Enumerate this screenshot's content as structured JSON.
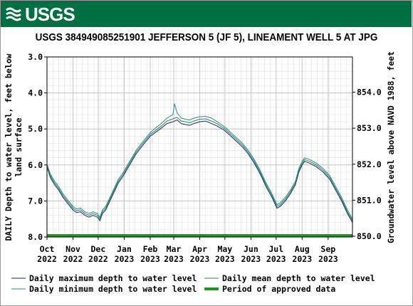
{
  "logo_text": "USGS",
  "title": "USGS 384949085251901 JEFFERSON 5 (JF 5), LINEAMENT WELL 5 AT JPG",
  "chart_data": {
    "type": "line",
    "ylabel": "DAILY Depth to water level, feet below land surface",
    "ylabel_lines": [
      "DAILY Depth to water level, feet below",
      "land surface"
    ],
    "y2label": "Groundwater level above NAVD 1988, feet",
    "ylim": [
      8.0,
      3.0
    ],
    "y_inverted": true,
    "yticks": [
      {
        "value": 3.0,
        "label": "3.0"
      },
      {
        "value": 4.0,
        "label": "4.0"
      },
      {
        "value": 5.0,
        "label": "5.0"
      },
      {
        "value": 6.0,
        "label": "6.0"
      },
      {
        "value": 7.0,
        "label": "7.0"
      },
      {
        "value": 8.0,
        "label": "8.0"
      }
    ],
    "y2ticks": [
      {
        "value": 854.0,
        "label": "854.0"
      },
      {
        "value": 853.0,
        "label": "853.0"
      },
      {
        "value": 852.0,
        "label": "852.0"
      },
      {
        "value": 851.0,
        "label": "851.0"
      },
      {
        "value": 850.0,
        "label": "850.0"
      }
    ],
    "y2_offset": 857.98,
    "xlim": [
      "2022-10-01",
      "2023-09-30"
    ],
    "xticks": [
      {
        "date": "2022-10-01",
        "month": "Oct",
        "year": "2022"
      },
      {
        "date": "2022-11-01",
        "month": "Nov",
        "year": "2022"
      },
      {
        "date": "2022-12-01",
        "month": "Dec",
        "year": "2022"
      },
      {
        "date": "2023-01-01",
        "month": "Jan",
        "year": "2023"
      },
      {
        "date": "2023-02-01",
        "month": "Feb",
        "year": "2023"
      },
      {
        "date": "2023-03-01",
        "month": "Mar",
        "year": "2023"
      },
      {
        "date": "2023-04-01",
        "month": "Apr",
        "year": "2023"
      },
      {
        "date": "2023-05-01",
        "month": "May",
        "year": "2023"
      },
      {
        "date": "2023-06-01",
        "month": "Jun",
        "year": "2023"
      },
      {
        "date": "2023-07-01",
        "month": "Jul",
        "year": "2023"
      },
      {
        "date": "2023-08-01",
        "month": "Aug",
        "year": "2023"
      },
      {
        "date": "2023-09-01",
        "month": "Sep",
        "year": "2023"
      }
    ],
    "grid": true,
    "legend_position": "bottom",
    "series": [
      {
        "name": "Daily maximum depth to water level",
        "color": "#1a1aa6",
        "points": [
          [
            "2022-10-01",
            6.05
          ],
          [
            "2022-10-05",
            6.35
          ],
          [
            "2022-10-10",
            6.55
          ],
          [
            "2022-10-15",
            6.7
          ],
          [
            "2022-10-20",
            6.9
          ],
          [
            "2022-10-25",
            7.05
          ],
          [
            "2022-11-01",
            7.25
          ],
          [
            "2022-11-05",
            7.32
          ],
          [
            "2022-11-10",
            7.3
          ],
          [
            "2022-11-15",
            7.4
          ],
          [
            "2022-11-20",
            7.45
          ],
          [
            "2022-11-25",
            7.4
          ],
          [
            "2022-11-30",
            7.45
          ],
          [
            "2022-12-03",
            7.55
          ],
          [
            "2022-12-06",
            7.35
          ],
          [
            "2022-12-10",
            7.25
          ],
          [
            "2022-12-15",
            7.0
          ],
          [
            "2022-12-20",
            6.75
          ],
          [
            "2022-12-25",
            6.5
          ],
          [
            "2022-12-31",
            6.3
          ],
          [
            "2023-01-05",
            6.1
          ],
          [
            "2023-01-10",
            5.9
          ],
          [
            "2023-01-15",
            5.7
          ],
          [
            "2023-01-20",
            5.55
          ],
          [
            "2023-01-25",
            5.4
          ],
          [
            "2023-02-01",
            5.2
          ],
          [
            "2023-02-07",
            5.1
          ],
          [
            "2023-02-14",
            4.98
          ],
          [
            "2023-02-21",
            4.85
          ],
          [
            "2023-02-28",
            4.8
          ],
          [
            "2023-03-05",
            4.75
          ],
          [
            "2023-03-10",
            4.85
          ],
          [
            "2023-03-15",
            4.88
          ],
          [
            "2023-03-20",
            4.9
          ],
          [
            "2023-03-25",
            4.85
          ],
          [
            "2023-04-01",
            4.8
          ],
          [
            "2023-04-08",
            4.78
          ],
          [
            "2023-04-15",
            4.85
          ],
          [
            "2023-04-22",
            4.92
          ],
          [
            "2023-05-01",
            5.05
          ],
          [
            "2023-05-08",
            5.2
          ],
          [
            "2023-05-15",
            5.35
          ],
          [
            "2023-05-22",
            5.5
          ],
          [
            "2023-05-29",
            5.7
          ],
          [
            "2023-06-05",
            5.95
          ],
          [
            "2023-06-12",
            6.25
          ],
          [
            "2023-06-19",
            6.6
          ],
          [
            "2023-06-26",
            6.9
          ],
          [
            "2023-07-02",
            7.2
          ],
          [
            "2023-07-06",
            7.15
          ],
          [
            "2023-07-12",
            7.0
          ],
          [
            "2023-07-18",
            6.8
          ],
          [
            "2023-07-24",
            6.55
          ],
          [
            "2023-07-28",
            6.2
          ],
          [
            "2023-08-01",
            6.0
          ],
          [
            "2023-08-04",
            5.9
          ],
          [
            "2023-08-10",
            5.95
          ],
          [
            "2023-08-18",
            6.05
          ],
          [
            "2023-08-26",
            6.2
          ],
          [
            "2023-09-03",
            6.4
          ],
          [
            "2023-09-10",
            6.7
          ],
          [
            "2023-09-17",
            7.0
          ],
          [
            "2023-09-24",
            7.35
          ],
          [
            "2023-09-30",
            7.6
          ]
        ]
      },
      {
        "name": "Daily mean depth to water level",
        "color": "#2e8b2e",
        "points": [
          [
            "2022-10-01",
            6.02
          ],
          [
            "2022-10-05",
            6.3
          ],
          [
            "2022-10-10",
            6.5
          ],
          [
            "2022-10-15",
            6.65
          ],
          [
            "2022-10-20",
            6.85
          ],
          [
            "2022-10-25",
            7.0
          ],
          [
            "2022-11-01",
            7.2
          ],
          [
            "2022-11-05",
            7.27
          ],
          [
            "2022-11-10",
            7.25
          ],
          [
            "2022-11-15",
            7.35
          ],
          [
            "2022-11-20",
            7.4
          ],
          [
            "2022-11-25",
            7.35
          ],
          [
            "2022-11-30",
            7.4
          ],
          [
            "2022-12-03",
            7.5
          ],
          [
            "2022-12-06",
            7.3
          ],
          [
            "2022-12-10",
            7.2
          ],
          [
            "2022-12-15",
            6.95
          ],
          [
            "2022-12-20",
            6.7
          ],
          [
            "2022-12-25",
            6.45
          ],
          [
            "2022-12-31",
            6.25
          ],
          [
            "2023-01-05",
            6.05
          ],
          [
            "2023-01-10",
            5.85
          ],
          [
            "2023-01-15",
            5.65
          ],
          [
            "2023-01-20",
            5.5
          ],
          [
            "2023-01-25",
            5.35
          ],
          [
            "2023-02-01",
            5.15
          ],
          [
            "2023-02-07",
            5.05
          ],
          [
            "2023-02-14",
            4.92
          ],
          [
            "2023-02-21",
            4.78
          ],
          [
            "2023-02-28",
            4.72
          ],
          [
            "2023-03-05",
            4.68
          ],
          [
            "2023-03-10",
            4.78
          ],
          [
            "2023-03-15",
            4.8
          ],
          [
            "2023-03-20",
            4.83
          ],
          [
            "2023-03-25",
            4.78
          ],
          [
            "2023-04-01",
            4.73
          ],
          [
            "2023-04-08",
            4.72
          ],
          [
            "2023-04-15",
            4.78
          ],
          [
            "2023-04-22",
            4.86
          ],
          [
            "2023-05-01",
            5.0
          ],
          [
            "2023-05-08",
            5.15
          ],
          [
            "2023-05-15",
            5.3
          ],
          [
            "2023-05-22",
            5.45
          ],
          [
            "2023-05-29",
            5.65
          ],
          [
            "2023-06-05",
            5.9
          ],
          [
            "2023-06-12",
            6.2
          ],
          [
            "2023-06-19",
            6.55
          ],
          [
            "2023-06-26",
            6.85
          ],
          [
            "2023-07-02",
            7.15
          ],
          [
            "2023-07-06",
            7.1
          ],
          [
            "2023-07-12",
            6.95
          ],
          [
            "2023-07-18",
            6.75
          ],
          [
            "2023-07-24",
            6.5
          ],
          [
            "2023-07-28",
            6.15
          ],
          [
            "2023-08-01",
            5.95
          ],
          [
            "2023-08-04",
            5.85
          ],
          [
            "2023-08-10",
            5.9
          ],
          [
            "2023-08-18",
            6.0
          ],
          [
            "2023-08-26",
            6.15
          ],
          [
            "2023-09-03",
            6.35
          ],
          [
            "2023-09-10",
            6.65
          ],
          [
            "2023-09-17",
            6.95
          ],
          [
            "2023-09-24",
            7.3
          ],
          [
            "2023-09-30",
            7.55
          ]
        ]
      },
      {
        "name": "Daily minimum depth to water level",
        "color": "#1f8f8f",
        "points": [
          [
            "2022-10-01",
            5.98
          ],
          [
            "2022-10-05",
            6.25
          ],
          [
            "2022-10-10",
            6.45
          ],
          [
            "2022-10-15",
            6.6
          ],
          [
            "2022-10-20",
            6.8
          ],
          [
            "2022-10-25",
            6.95
          ],
          [
            "2022-11-01",
            7.15
          ],
          [
            "2022-11-05",
            7.22
          ],
          [
            "2022-11-10",
            7.2
          ],
          [
            "2022-11-15",
            7.3
          ],
          [
            "2022-11-20",
            7.35
          ],
          [
            "2022-11-25",
            7.3
          ],
          [
            "2022-11-30",
            7.35
          ],
          [
            "2022-12-03",
            7.45
          ],
          [
            "2022-12-06",
            7.25
          ],
          [
            "2022-12-10",
            7.15
          ],
          [
            "2022-12-15",
            6.9
          ],
          [
            "2022-12-20",
            6.65
          ],
          [
            "2022-12-25",
            6.4
          ],
          [
            "2022-12-31",
            6.2
          ],
          [
            "2023-01-05",
            6.0
          ],
          [
            "2023-01-10",
            5.8
          ],
          [
            "2023-01-15",
            5.6
          ],
          [
            "2023-01-20",
            5.45
          ],
          [
            "2023-01-25",
            5.3
          ],
          [
            "2023-02-01",
            5.1
          ],
          [
            "2023-02-07",
            4.98
          ],
          [
            "2023-02-14",
            4.85
          ],
          [
            "2023-02-21",
            4.7
          ],
          [
            "2023-02-28",
            4.6
          ],
          [
            "2023-03-02",
            4.3
          ],
          [
            "2023-03-05",
            4.55
          ],
          [
            "2023-03-10",
            4.7
          ],
          [
            "2023-03-15",
            4.73
          ],
          [
            "2023-03-20",
            4.75
          ],
          [
            "2023-03-25",
            4.7
          ],
          [
            "2023-04-01",
            4.66
          ],
          [
            "2023-04-08",
            4.65
          ],
          [
            "2023-04-15",
            4.7
          ],
          [
            "2023-04-22",
            4.8
          ],
          [
            "2023-05-01",
            4.95
          ],
          [
            "2023-05-08",
            5.1
          ],
          [
            "2023-05-15",
            5.25
          ],
          [
            "2023-05-22",
            5.4
          ],
          [
            "2023-05-29",
            5.6
          ],
          [
            "2023-06-05",
            5.85
          ],
          [
            "2023-06-12",
            6.15
          ],
          [
            "2023-06-19",
            6.5
          ],
          [
            "2023-06-26",
            6.8
          ],
          [
            "2023-07-02",
            7.1
          ],
          [
            "2023-07-06",
            7.05
          ],
          [
            "2023-07-12",
            6.9
          ],
          [
            "2023-07-18",
            6.7
          ],
          [
            "2023-07-24",
            6.45
          ],
          [
            "2023-07-28",
            6.1
          ],
          [
            "2023-08-01",
            5.9
          ],
          [
            "2023-08-04",
            5.8
          ],
          [
            "2023-08-10",
            5.85
          ],
          [
            "2023-08-18",
            5.95
          ],
          [
            "2023-08-26",
            6.1
          ],
          [
            "2023-09-03",
            6.3
          ],
          [
            "2023-09-10",
            6.6
          ],
          [
            "2023-09-17",
            6.9
          ],
          [
            "2023-09-24",
            7.25
          ],
          [
            "2023-09-30",
            7.5
          ]
        ]
      }
    ],
    "approved_period": {
      "name": "Period of approved data",
      "color": "#1a9a1a",
      "start": "2022-10-01",
      "end": "2023-09-30"
    }
  }
}
